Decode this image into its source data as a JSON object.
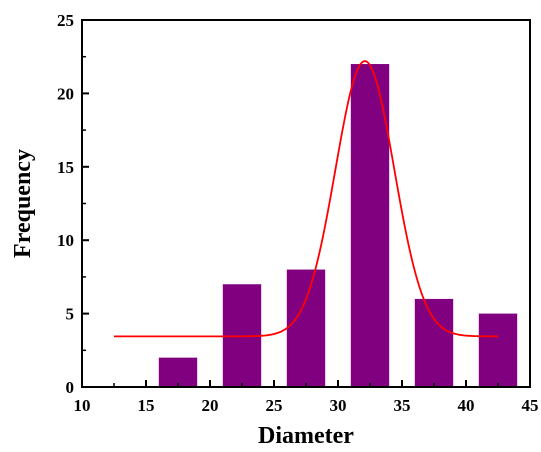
{
  "chart_data": {
    "type": "bar",
    "xlabel": "Diameter",
    "ylabel": "Frequency",
    "xlim": [
      10,
      45
    ],
    "ylim": [
      0,
      25
    ],
    "x_ticks": [
      10,
      15,
      20,
      25,
      30,
      35,
      40,
      45
    ],
    "y_ticks": [
      0,
      5,
      10,
      15,
      20,
      25
    ],
    "grid": false,
    "bars": [
      {
        "x_start": 16,
        "x_end": 19,
        "value": 2
      },
      {
        "x_start": 21,
        "x_end": 24,
        "value": 7
      },
      {
        "x_start": 26,
        "x_end": 29,
        "value": 8
      },
      {
        "x_start": 31,
        "x_end": 34,
        "value": 22
      },
      {
        "x_start": 36,
        "x_end": 39,
        "value": 6
      },
      {
        "x_start": 41,
        "x_end": 44,
        "value": 5
      }
    ],
    "fit_curve": {
      "type": "gaussian",
      "x_range": [
        12.5,
        42.5
      ],
      "baseline": 3.45,
      "peak_x": 32.1,
      "peak_y": 22.2,
      "sigma": 2.3
    },
    "colors": {
      "bar": "#800080",
      "fit": "#ff0000",
      "axis": "#000000"
    }
  }
}
